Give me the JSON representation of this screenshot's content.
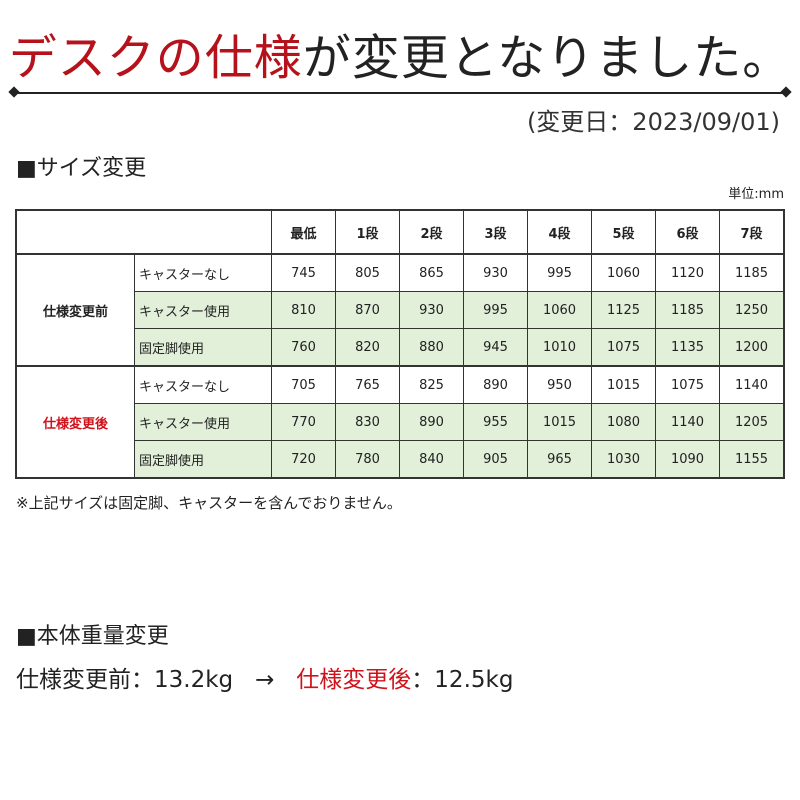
{
  "title": {
    "red_part": "デスクの仕様",
    "black_part": "が変更となりました。"
  },
  "change_date": "(変更日：2023/09/01)",
  "size_section": {
    "heading": "■サイズ変更",
    "unit": "単位:mm",
    "columns": [
      "最低",
      "1段",
      "2段",
      "3段",
      "4段",
      "5段",
      "6段",
      "7段"
    ],
    "groups": [
      {
        "label": "仕様変更前",
        "rows": [
          {
            "label": "キャスターなし",
            "values": [
              "745",
              "805",
              "865",
              "930",
              "995",
              "1060",
              "1120",
              "1185"
            ]
          },
          {
            "label": "キャスター使用",
            "values": [
              "810",
              "870",
              "930",
              "995",
              "1060",
              "1125",
              "1185",
              "1250"
            ]
          },
          {
            "label": "固定脚使用",
            "values": [
              "760",
              "820",
              "880",
              "945",
              "1010",
              "1075",
              "1135",
              "1200"
            ]
          }
        ]
      },
      {
        "label": "仕様変更後",
        "rows": [
          {
            "label": "キャスターなし",
            "values": [
              "705",
              "765",
              "825",
              "890",
              "950",
              "1015",
              "1075",
              "1140"
            ]
          },
          {
            "label": "キャスター使用",
            "values": [
              "770",
              "830",
              "890",
              "955",
              "1015",
              "1080",
              "1140",
              "1205"
            ]
          },
          {
            "label": "固定脚使用",
            "values": [
              "720",
              "780",
              "840",
              "905",
              "965",
              "1030",
              "1090",
              "1155"
            ]
          }
        ]
      }
    ],
    "note": "※上記サイズは固定脚、キャスターを含んでおりません。"
  },
  "weight_section": {
    "heading": "■本体重量変更",
    "before_label": "仕様変更前",
    "before_value": "：13.2kg",
    "arrow": "→",
    "after_label": "仕様変更後",
    "after_value": "：12.5kg"
  },
  "colors": {
    "title_red": "#b5121b",
    "after_red": "#d0121b",
    "row_green": "#e2efd9"
  }
}
